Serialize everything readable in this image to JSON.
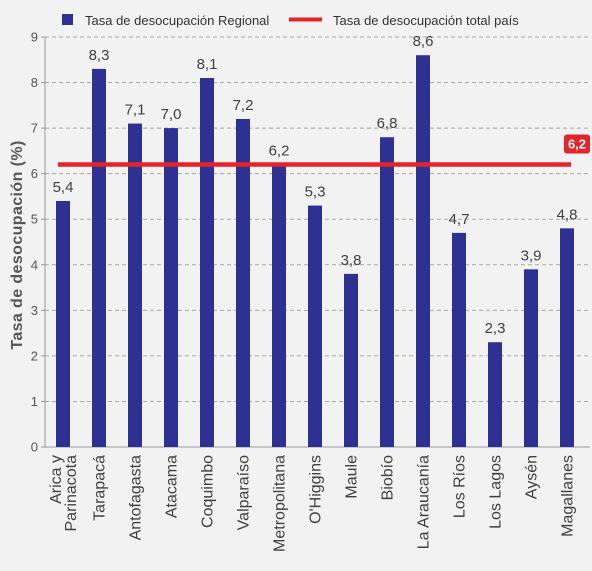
{
  "chart_data": {
    "type": "bar",
    "ylabel": "Tasa de desocupación (%)",
    "ylim": [
      0,
      9
    ],
    "yticks": [
      0,
      1,
      2,
      3,
      4,
      5,
      6,
      7,
      8,
      9
    ],
    "grid": true,
    "legend_position": "top",
    "categories": [
      "Arica y Parinacota",
      "Tarapacá",
      "Antofagasta",
      "Atacama",
      "Coquimbo",
      "Valparaíso",
      "Metropolitana",
      "O'Higgins",
      "Maule",
      "Biobío",
      "La Araucanía",
      "Los Ríos",
      "Los Lagos",
      "Aysén",
      "Magallanes"
    ],
    "series": [
      {
        "name": "Tasa de desocupación Regional",
        "type": "bar",
        "color": "#2e3192",
        "values": [
          5.4,
          8.3,
          7.1,
          7.0,
          8.1,
          7.2,
          6.2,
          5.3,
          3.8,
          6.8,
          8.6,
          4.7,
          2.3,
          3.9,
          4.8
        ],
        "data_labels": [
          "5,4",
          "8,3",
          "7,1",
          "7,0",
          "8,1",
          "7,2",
          "6,2",
          "5,3",
          "3,8",
          "6,8",
          "8,6",
          "4,7",
          "2,3",
          "3,9",
          "4,8"
        ]
      },
      {
        "name": "Tasa de desocupación total país",
        "type": "line",
        "color": "#e3242b",
        "value": 6.2,
        "label": "6,2"
      }
    ]
  }
}
